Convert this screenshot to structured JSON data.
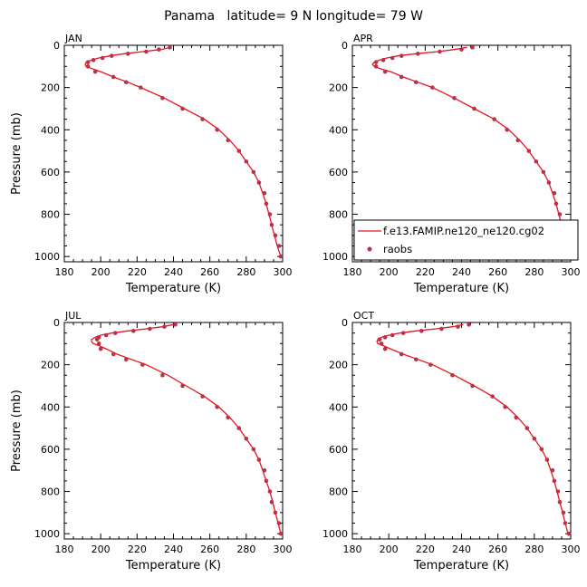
{
  "figure": {
    "title": "Panama   latitude= 9 N longitude= 79 W"
  },
  "legend": {
    "model_label": "f.e13.FAMIP.ne120_ne120.cg02",
    "obs_label": "raobs",
    "panel_index": 1
  },
  "colors": {
    "model_line": "#e8141c",
    "obs_marker": "#b8334a",
    "axes": "#000000"
  },
  "chart_data": [
    {
      "type": "line",
      "label": "JAN",
      "xlabel": "Temperature (K)",
      "ylabel": "Pressure (mb)",
      "xlim": [
        180,
        300
      ],
      "ylim": [
        1025,
        0
      ],
      "xticks": [
        180,
        200,
        220,
        240,
        260,
        280,
        300
      ],
      "yticks": [
        0,
        200,
        400,
        600,
        800,
        1000
      ],
      "series": [
        {
          "kind": "line",
          "points": [
            [
              238.5,
              10
            ],
            [
              233,
              20
            ],
            [
              223,
              30
            ],
            [
              213,
              40
            ],
            [
              205,
              50
            ],
            [
              199,
              60
            ],
            [
              195,
              70
            ],
            [
              192,
              80
            ],
            [
              191.5,
              90
            ],
            [
              192,
              100
            ],
            [
              195,
              110
            ],
            [
              200,
              125
            ],
            [
              207,
              150
            ],
            [
              215,
              175
            ],
            [
              222,
              200
            ],
            [
              235,
              250
            ],
            [
              246,
              300
            ],
            [
              257,
              350
            ],
            [
              265,
              400
            ],
            [
              271,
              450
            ],
            [
              276,
              500
            ],
            [
              280,
              550
            ],
            [
              284,
              600
            ],
            [
              287,
              650
            ],
            [
              289,
              700
            ],
            [
              291,
              750
            ],
            [
              292.5,
              800
            ],
            [
              294,
              850
            ],
            [
              295.5,
              900
            ],
            [
              297,
              950
            ],
            [
              299,
              1000
            ]
          ]
        },
        {
          "kind": "scatter",
          "points": [
            [
              238,
              10
            ],
            [
              232,
              20
            ],
            [
              225,
              30
            ],
            [
              215,
              40
            ],
            [
              206,
              50
            ],
            [
              201,
              60
            ],
            [
              196,
              70
            ],
            [
              193,
              80
            ],
            [
              193,
              100
            ],
            [
              197,
              125
            ],
            [
              207,
              150
            ],
            [
              214,
              175
            ],
            [
              222,
              200
            ],
            [
              234,
              250
            ],
            [
              245,
              300
            ],
            [
              256,
              350
            ],
            [
              264,
              400
            ],
            [
              270,
              450
            ],
            [
              276,
              500
            ],
            [
              280,
              550
            ],
            [
              284,
              600
            ],
            [
              287,
              650
            ],
            [
              290,
              700
            ],
            [
              291,
              750
            ],
            [
              293,
              800
            ],
            [
              294,
              850
            ],
            [
              296,
              900
            ],
            [
              298,
              950
            ],
            [
              299,
              1000
            ]
          ]
        }
      ]
    },
    {
      "type": "line",
      "label": "APR",
      "xlabel": "Temperature (K)",
      "ylabel": "",
      "xlim": [
        180,
        300
      ],
      "ylim": [
        1025,
        0
      ],
      "xticks": [
        180,
        200,
        220,
        240,
        260,
        280,
        300
      ],
      "yticks": [
        0,
        200,
        400,
        600,
        800,
        1000
      ],
      "series": [
        {
          "kind": "line",
          "points": [
            [
              243,
              10
            ],
            [
              236,
              20
            ],
            [
              227,
              30
            ],
            [
              215,
              40
            ],
            [
              205,
              50
            ],
            [
              199,
              60
            ],
            [
              195,
              70
            ],
            [
              192,
              80
            ],
            [
              191,
              90
            ],
            [
              192,
              100
            ],
            [
              195,
              110
            ],
            [
              201,
              125
            ],
            [
              208,
              150
            ],
            [
              216,
              175
            ],
            [
              224,
              200
            ],
            [
              236,
              250
            ],
            [
              247,
              300
            ],
            [
              258,
              350
            ],
            [
              266,
              400
            ],
            [
              272,
              450
            ],
            [
              277,
              500
            ],
            [
              281,
              550
            ],
            [
              285,
              600
            ],
            [
              288,
              650
            ],
            [
              290,
              700
            ],
            [
              292,
              750
            ],
            [
              293.5,
              800
            ],
            [
              295,
              850
            ],
            [
              296.5,
              900
            ],
            [
              298,
              950
            ],
            [
              300,
              1000
            ]
          ]
        },
        {
          "kind": "scatter",
          "points": [
            [
              246,
              10
            ],
            [
              240,
              20
            ],
            [
              228,
              30
            ],
            [
              216,
              40
            ],
            [
              207,
              50
            ],
            [
              202,
              60
            ],
            [
              197,
              70
            ],
            [
              193,
              80
            ],
            [
              193,
              100
            ],
            [
              198,
              125
            ],
            [
              207,
              150
            ],
            [
              215,
              175
            ],
            [
              224,
              200
            ],
            [
              236,
              250
            ],
            [
              247,
              300
            ],
            [
              258,
              350
            ],
            [
              265,
              400
            ],
            [
              271,
              450
            ],
            [
              277,
              500
            ],
            [
              281,
              550
            ],
            [
              285,
              600
            ],
            [
              288,
              650
            ],
            [
              291,
              700
            ],
            [
              292,
              750
            ],
            [
              294,
              800
            ],
            [
              295,
              850
            ],
            [
              297,
              900
            ],
            [
              298,
              950
            ],
            [
              299,
              1000
            ]
          ]
        }
      ]
    },
    {
      "type": "line",
      "label": "JUL",
      "xlabel": "Temperature (K)",
      "ylabel": "Pressure (mb)",
      "xlim": [
        180,
        300
      ],
      "ylim": [
        1025,
        0
      ],
      "xticks": [
        180,
        200,
        220,
        240,
        260,
        280,
        300
      ],
      "yticks": [
        0,
        200,
        400,
        600,
        800,
        1000
      ],
      "series": [
        {
          "kind": "line",
          "points": [
            [
              240,
              10
            ],
            [
              234,
              20
            ],
            [
              225,
              30
            ],
            [
              215,
              40
            ],
            [
              206,
              50
            ],
            [
              200,
              60
            ],
            [
              197,
              70
            ],
            [
              195,
              80
            ],
            [
              195,
              90
            ],
            [
              196,
              100
            ],
            [
              199,
              110
            ],
            [
              203,
              125
            ],
            [
              209,
              150
            ],
            [
              217,
              175
            ],
            [
              225,
              200
            ],
            [
              237,
              250
            ],
            [
              247,
              300
            ],
            [
              257,
              350
            ],
            [
              265,
              400
            ],
            [
              271,
              450
            ],
            [
              276,
              500
            ],
            [
              280,
              550
            ],
            [
              284,
              600
            ],
            [
              287,
              650
            ],
            [
              289,
              700
            ],
            [
              291,
              750
            ],
            [
              293,
              800
            ],
            [
              294.5,
              850
            ],
            [
              296,
              900
            ],
            [
              297.5,
              950
            ],
            [
              299,
              1000
            ]
          ]
        },
        {
          "kind": "scatter",
          "points": [
            [
              241,
              10
            ],
            [
              235,
              20
            ],
            [
              227,
              30
            ],
            [
              218,
              40
            ],
            [
              208,
              50
            ],
            [
              203,
              60
            ],
            [
              199,
              70
            ],
            [
              198,
              80
            ],
            [
              199,
              100
            ],
            [
              200,
              125
            ],
            [
              207,
              150
            ],
            [
              214,
              175
            ],
            [
              223,
              200
            ],
            [
              234,
              250
            ],
            [
              245,
              300
            ],
            [
              256,
              350
            ],
            [
              264,
              400
            ],
            [
              270,
              450
            ],
            [
              276,
              500
            ],
            [
              280,
              550
            ],
            [
              284,
              600
            ],
            [
              287,
              650
            ],
            [
              290,
              700
            ],
            [
              291,
              750
            ],
            [
              293,
              800
            ],
            [
              294,
              850
            ],
            [
              296,
              900
            ],
            [
              298,
              950
            ],
            [
              299,
              1000
            ]
          ]
        }
      ]
    },
    {
      "type": "line",
      "label": "OCT",
      "xlabel": "Temperature (K)",
      "ylabel": "",
      "xlim": [
        180,
        300
      ],
      "ylim": [
        1025,
        0
      ],
      "xticks": [
        180,
        200,
        220,
        240,
        260,
        280,
        300
      ],
      "yticks": [
        0,
        200,
        400,
        600,
        800,
        1000
      ],
      "series": [
        {
          "kind": "line",
          "points": [
            [
              241,
              10
            ],
            [
              235,
              20
            ],
            [
              226,
              30
            ],
            [
              215,
              40
            ],
            [
              206,
              50
            ],
            [
              200,
              60
            ],
            [
              196,
              70
            ],
            [
              194,
              80
            ],
            [
              193.5,
              90
            ],
            [
              194,
              100
            ],
            [
              197,
              110
            ],
            [
              201,
              125
            ],
            [
              208,
              150
            ],
            [
              216,
              175
            ],
            [
              224,
              200
            ],
            [
              236,
              250
            ],
            [
              247,
              300
            ],
            [
              257,
              350
            ],
            [
              265,
              400
            ],
            [
              271,
              450
            ],
            [
              276,
              500
            ],
            [
              280,
              550
            ],
            [
              284,
              600
            ],
            [
              287,
              650
            ],
            [
              289,
              700
            ],
            [
              291,
              750
            ],
            [
              292.5,
              800
            ],
            [
              294,
              850
            ],
            [
              295.5,
              900
            ],
            [
              297,
              950
            ],
            [
              298.5,
              1000
            ]
          ]
        },
        {
          "kind": "scatter",
          "points": [
            [
              244,
              10
            ],
            [
              238,
              20
            ],
            [
              229,
              30
            ],
            [
              218,
              40
            ],
            [
              208,
              50
            ],
            [
              202,
              60
            ],
            [
              198,
              70
            ],
            [
              195,
              80
            ],
            [
              196,
              100
            ],
            [
              198,
              125
            ],
            [
              207,
              150
            ],
            [
              215,
              175
            ],
            [
              223,
              200
            ],
            [
              235,
              250
            ],
            [
              246,
              300
            ],
            [
              257,
              350
            ],
            [
              264,
              400
            ],
            [
              270,
              450
            ],
            [
              276,
              500
            ],
            [
              280,
              550
            ],
            [
              284,
              600
            ],
            [
              287,
              650
            ],
            [
              290,
              700
            ],
            [
              291,
              750
            ],
            [
              293,
              800
            ],
            [
              294,
              850
            ],
            [
              296,
              900
            ],
            [
              297,
              950
            ],
            [
              299,
              1000
            ]
          ]
        }
      ]
    }
  ]
}
